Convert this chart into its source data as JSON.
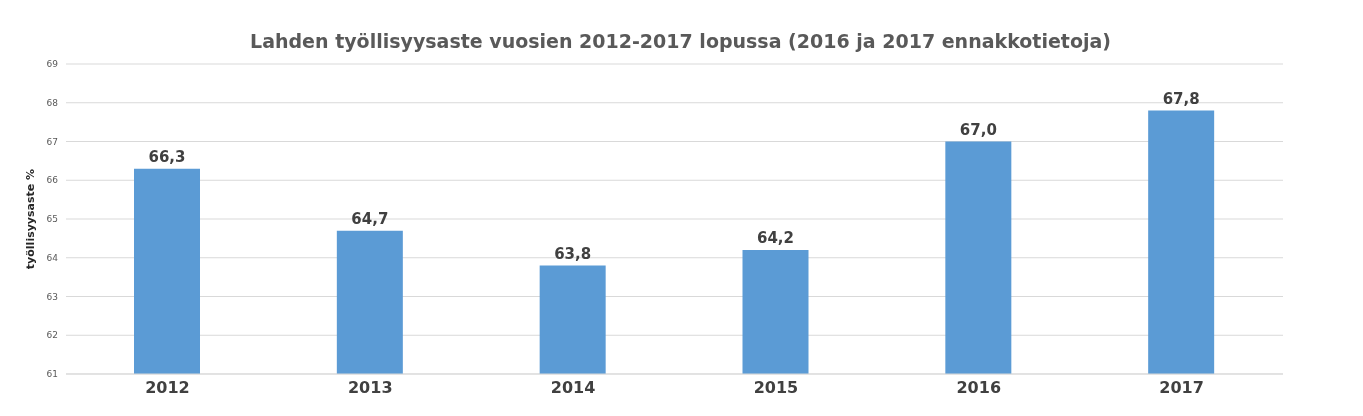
{
  "chart_data": {
    "type": "bar",
    "title": "Lahden työllisyysaste vuosien 2012-2017 lopussa (2016 ja 2017 ennakkotietoja)",
    "ylabel": "työllisyysaste %",
    "categories": [
      "2012",
      "2013",
      "2014",
      "2015",
      "2016",
      "2017"
    ],
    "series": [
      {
        "color": "#5b9bd5",
        "values": [
          66.3,
          64.7,
          63.8,
          64.2,
          67.0,
          67.8
        ],
        "value_labels": [
          "66,3",
          "64,7",
          "63,8",
          "64,2",
          "67,0",
          "67,8"
        ]
      }
    ],
    "ylim": [
      61,
      69
    ],
    "yticks": [
      61,
      62,
      63,
      64,
      65,
      66,
      67,
      68,
      69
    ],
    "grid": "y",
    "legend": false
  }
}
